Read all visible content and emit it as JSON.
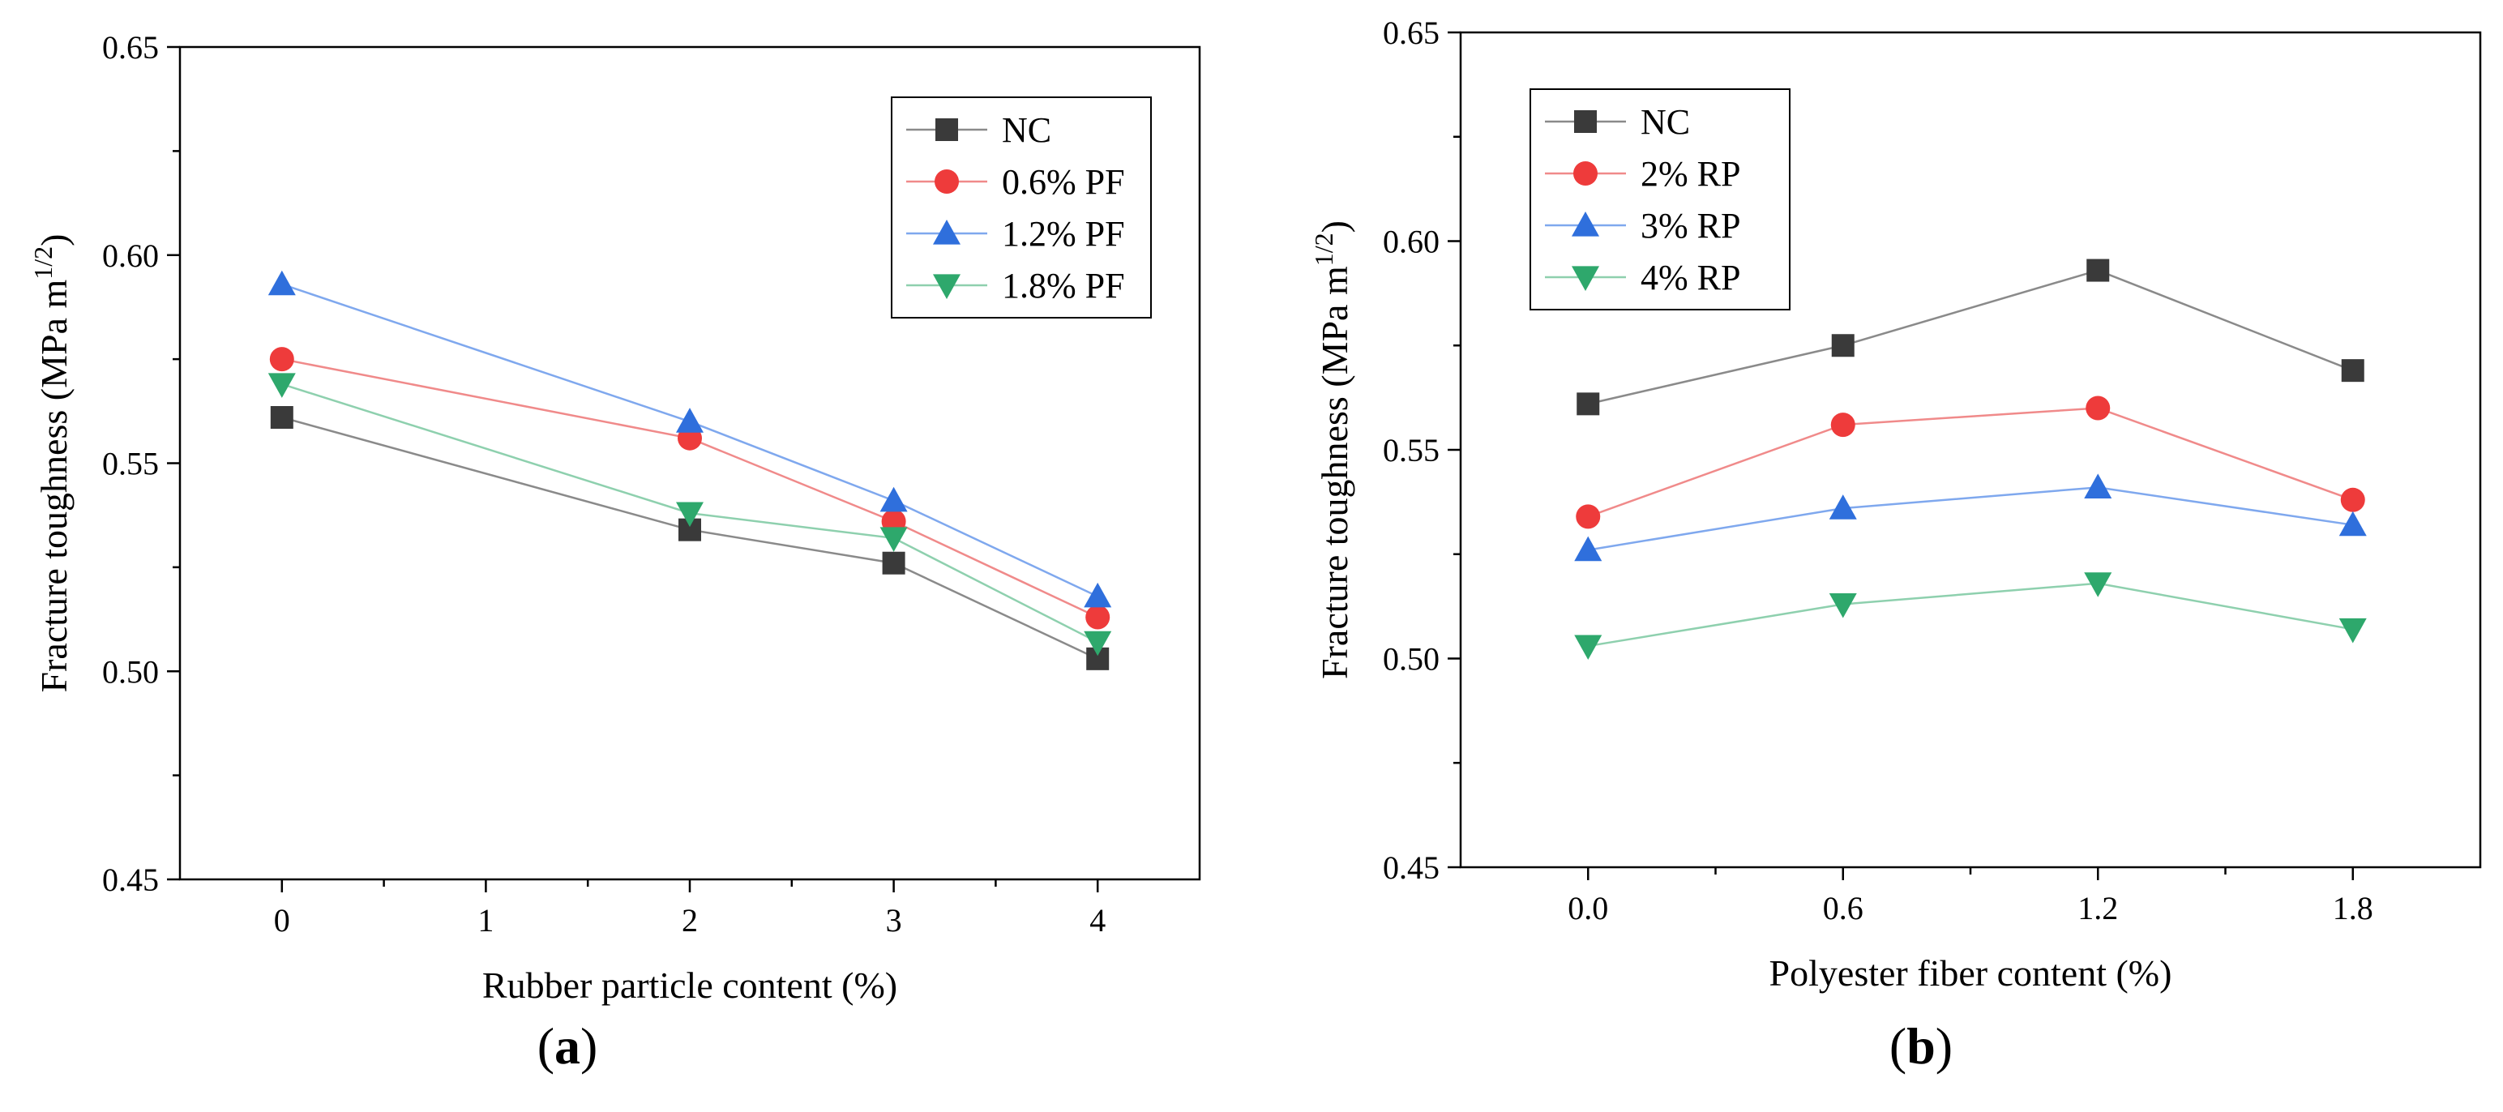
{
  "chart_data": [
    {
      "type": "line",
      "xlabel": "Rubber particle content (%)",
      "ylabel_main": "Fracture toughness (MPa m",
      "ylabel_sup": "1/2",
      "ylabel_close": ")",
      "panel_label": "a",
      "xlim": [
        -0.5,
        4.5
      ],
      "ylim": [
        0.45,
        0.65
      ],
      "x_ticks": [
        0,
        1,
        2,
        3,
        4
      ],
      "x_tick_labels": [
        "0",
        "1",
        "2",
        "3",
        "4"
      ],
      "y_ticks": [
        0.45,
        0.5,
        0.55,
        0.6,
        0.65
      ],
      "y_tick_labels": [
        "0.45",
        "0.50",
        "0.55",
        "0.60",
        "0.65"
      ],
      "legend_position": "top-right",
      "x": [
        0,
        2,
        3,
        4
      ],
      "series": [
        {
          "name": "NC",
          "values": [
            0.561,
            0.534,
            0.526,
            0.503
          ],
          "color": "#3a3a3a",
          "line_color": "#8a8a8a",
          "marker": "square"
        },
        {
          "name": "0.6% PF",
          "values": [
            0.575,
            0.556,
            0.536,
            0.513
          ],
          "color": "#ee3b3b",
          "line_color": "#f08a8a",
          "marker": "circle"
        },
        {
          "name": "1.2% PF",
          "values": [
            0.593,
            0.56,
            0.541,
            0.518
          ],
          "color": "#2f6fdc",
          "line_color": "#7fa8ee",
          "marker": "triangle-up"
        },
        {
          "name": "1.8% PF",
          "values": [
            0.569,
            0.538,
            0.532,
            0.507
          ],
          "color": "#2ea86c",
          "line_color": "#8ed0ae",
          "marker": "triangle-down"
        }
      ]
    },
    {
      "type": "line",
      "xlabel": "Polyester fiber content (%)",
      "ylabel_main": "Fracture toughness (MPa m",
      "ylabel_sup": "1/2",
      "ylabel_close": ")",
      "panel_label": "b",
      "xlim": [
        -0.3,
        2.1
      ],
      "ylim": [
        0.45,
        0.65
      ],
      "x_ticks": [
        0.0,
        0.6,
        1.2,
        1.8
      ],
      "x_tick_labels": [
        "0.0",
        "0.6",
        "1.2",
        "1.8"
      ],
      "y_ticks": [
        0.45,
        0.5,
        0.55,
        0.6,
        0.65
      ],
      "y_tick_labels": [
        "0.45",
        "0.50",
        "0.55",
        "0.60",
        "0.65"
      ],
      "legend_position": "top-left",
      "x": [
        0.0,
        0.6,
        1.2,
        1.8
      ],
      "series": [
        {
          "name": "NC",
          "values": [
            0.561,
            0.575,
            0.593,
            0.569
          ],
          "color": "#3a3a3a",
          "line_color": "#8a8a8a",
          "marker": "square"
        },
        {
          "name": "2% RP",
          "values": [
            0.534,
            0.556,
            0.56,
            0.538
          ],
          "color": "#ee3b3b",
          "line_color": "#f08a8a",
          "marker": "circle"
        },
        {
          "name": "3% RP",
          "values": [
            0.526,
            0.536,
            0.541,
            0.532
          ],
          "color": "#2f6fdc",
          "line_color": "#7fa8ee",
          "marker": "triangle-up"
        },
        {
          "name": "4% RP",
          "values": [
            0.503,
            0.513,
            0.518,
            0.507
          ],
          "color": "#2ea86c",
          "line_color": "#8ed0ae",
          "marker": "triangle-down"
        }
      ]
    }
  ]
}
